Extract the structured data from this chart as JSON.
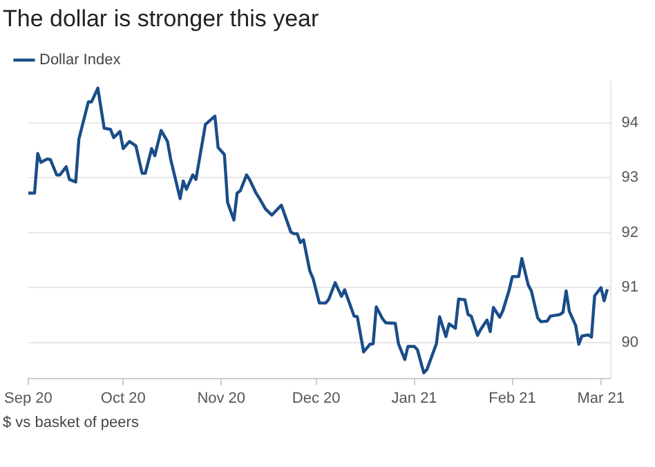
{
  "chart_data": {
    "type": "line",
    "title": "The dollar is stronger this year",
    "annotations": [
      "$ vs basket of peers"
    ],
    "x": [
      "2020-09-01",
      "2020-09-03",
      "2020-09-04",
      "2020-09-05",
      "2020-09-07",
      "2020-09-08",
      "2020-09-10",
      "2020-09-11",
      "2020-09-13",
      "2020-09-14",
      "2020-09-16",
      "2020-09-17",
      "2020-09-20",
      "2020-09-21",
      "2020-09-23",
      "2020-09-25",
      "2020-09-27",
      "2020-09-28",
      "2020-09-30",
      "2020-10-01",
      "2020-10-03",
      "2020-10-05",
      "2020-10-07",
      "2020-10-08",
      "2020-10-10",
      "2020-10-11",
      "2020-10-13",
      "2020-10-15",
      "2020-10-16",
      "2020-10-19",
      "2020-10-20",
      "2020-10-21",
      "2020-10-23",
      "2020-10-24",
      "2020-10-27",
      "2020-10-30",
      "2020-10-31",
      "2020-11-02",
      "2020-11-03",
      "2020-11-05",
      "2020-11-06",
      "2020-11-07",
      "2020-11-09",
      "2020-11-10",
      "2020-11-12",
      "2020-11-13",
      "2020-11-15",
      "2020-11-17",
      "2020-11-18",
      "2020-11-20",
      "2020-11-23",
      "2020-11-24",
      "2020-11-25",
      "2020-11-26",
      "2020-11-27",
      "2020-11-29",
      "2020-11-30",
      "2020-12-02",
      "2020-12-04",
      "2020-12-05",
      "2020-12-07",
      "2020-12-09",
      "2020-12-10",
      "2020-12-13",
      "2020-12-14",
      "2020-12-16",
      "2020-12-18",
      "2020-12-19",
      "2020-12-20",
      "2020-12-22",
      "2020-12-23",
      "2020-12-26",
      "2020-12-27",
      "2020-12-29",
      "2020-12-30",
      "2021-01-01",
      "2021-01-02",
      "2021-01-04",
      "2021-01-05",
      "2021-01-08",
      "2021-01-09",
      "2021-01-11",
      "2021-01-12",
      "2021-01-14",
      "2021-01-15",
      "2021-01-17",
      "2021-01-18",
      "2021-01-19",
      "2021-01-21",
      "2021-01-22",
      "2021-01-24",
      "2021-01-25",
      "2021-01-26",
      "2021-01-28",
      "2021-01-29",
      "2021-01-31",
      "2021-02-01",
      "2021-02-03",
      "2021-02-04",
      "2021-02-06",
      "2021-02-07",
      "2021-02-09",
      "2021-02-10",
      "2021-02-12",
      "2021-02-13",
      "2021-02-16",
      "2021-02-17",
      "2021-02-18",
      "2021-02-19",
      "2021-02-21",
      "2021-02-22",
      "2021-02-23",
      "2021-02-25",
      "2021-02-26",
      "2021-02-27",
      "2021-03-01",
      "2021-03-02",
      "2021-03-03"
    ],
    "series": [
      {
        "name": "Dollar Index",
        "color": "#1a4d88",
        "values": [
          92.72,
          92.72,
          93.44,
          93.28,
          93.34,
          93.33,
          93.05,
          93.05,
          93.2,
          92.97,
          92.92,
          93.7,
          94.38,
          94.38,
          94.63,
          93.9,
          93.88,
          93.73,
          93.84,
          93.53,
          93.66,
          93.58,
          93.08,
          93.08,
          93.53,
          93.4,
          93.86,
          93.66,
          93.34,
          92.62,
          92.94,
          92.79,
          93.05,
          92.97,
          93.97,
          94.12,
          93.55,
          93.42,
          92.55,
          92.23,
          92.72,
          92.76,
          93.05,
          92.96,
          92.72,
          92.63,
          92.43,
          92.32,
          92.38,
          92.5,
          92.01,
          91.98,
          91.98,
          91.82,
          91.87,
          91.3,
          91.17,
          90.72,
          90.72,
          90.79,
          91.09,
          90.84,
          90.96,
          90.48,
          90.47,
          89.83,
          89.97,
          89.98,
          90.65,
          90.43,
          90.36,
          90.35,
          89.98,
          89.69,
          89.93,
          89.93,
          89.87,
          89.45,
          89.51,
          89.98,
          90.47,
          90.11,
          90.34,
          90.26,
          90.79,
          90.78,
          90.51,
          90.48,
          90.13,
          90.24,
          90.41,
          90.2,
          90.64,
          90.46,
          90.58,
          90.96,
          91.2,
          91.2,
          91.53,
          91.05,
          90.94,
          90.45,
          90.38,
          90.39,
          90.48,
          90.51,
          90.55,
          90.94,
          90.57,
          90.31,
          89.97,
          90.12,
          90.14,
          90.1,
          90.85,
          91.0,
          90.76,
          90.97
        ]
      }
    ],
    "xlim": [
      "2020-09-01",
      "2021-03-04"
    ],
    "xticks": [
      {
        "value": "2020-09-01",
        "label": "Sep 20"
      },
      {
        "value": "2020-10-01",
        "label": "Oct 20"
      },
      {
        "value": "2020-11-01",
        "label": "Nov 20"
      },
      {
        "value": "2020-12-01",
        "label": "Dec 20"
      },
      {
        "value": "2021-01-01",
        "label": "Jan 21"
      },
      {
        "value": "2021-02-01",
        "label": "Feb 21"
      },
      {
        "value": "2021-03-01",
        "label": "Mar 21"
      }
    ],
    "ylim": [
      89.35,
      94.75
    ],
    "yticks": [
      90,
      91,
      92,
      93,
      94
    ],
    "grid": "y",
    "legend": "top left",
    "marker": "none",
    "line_style": "solid"
  }
}
